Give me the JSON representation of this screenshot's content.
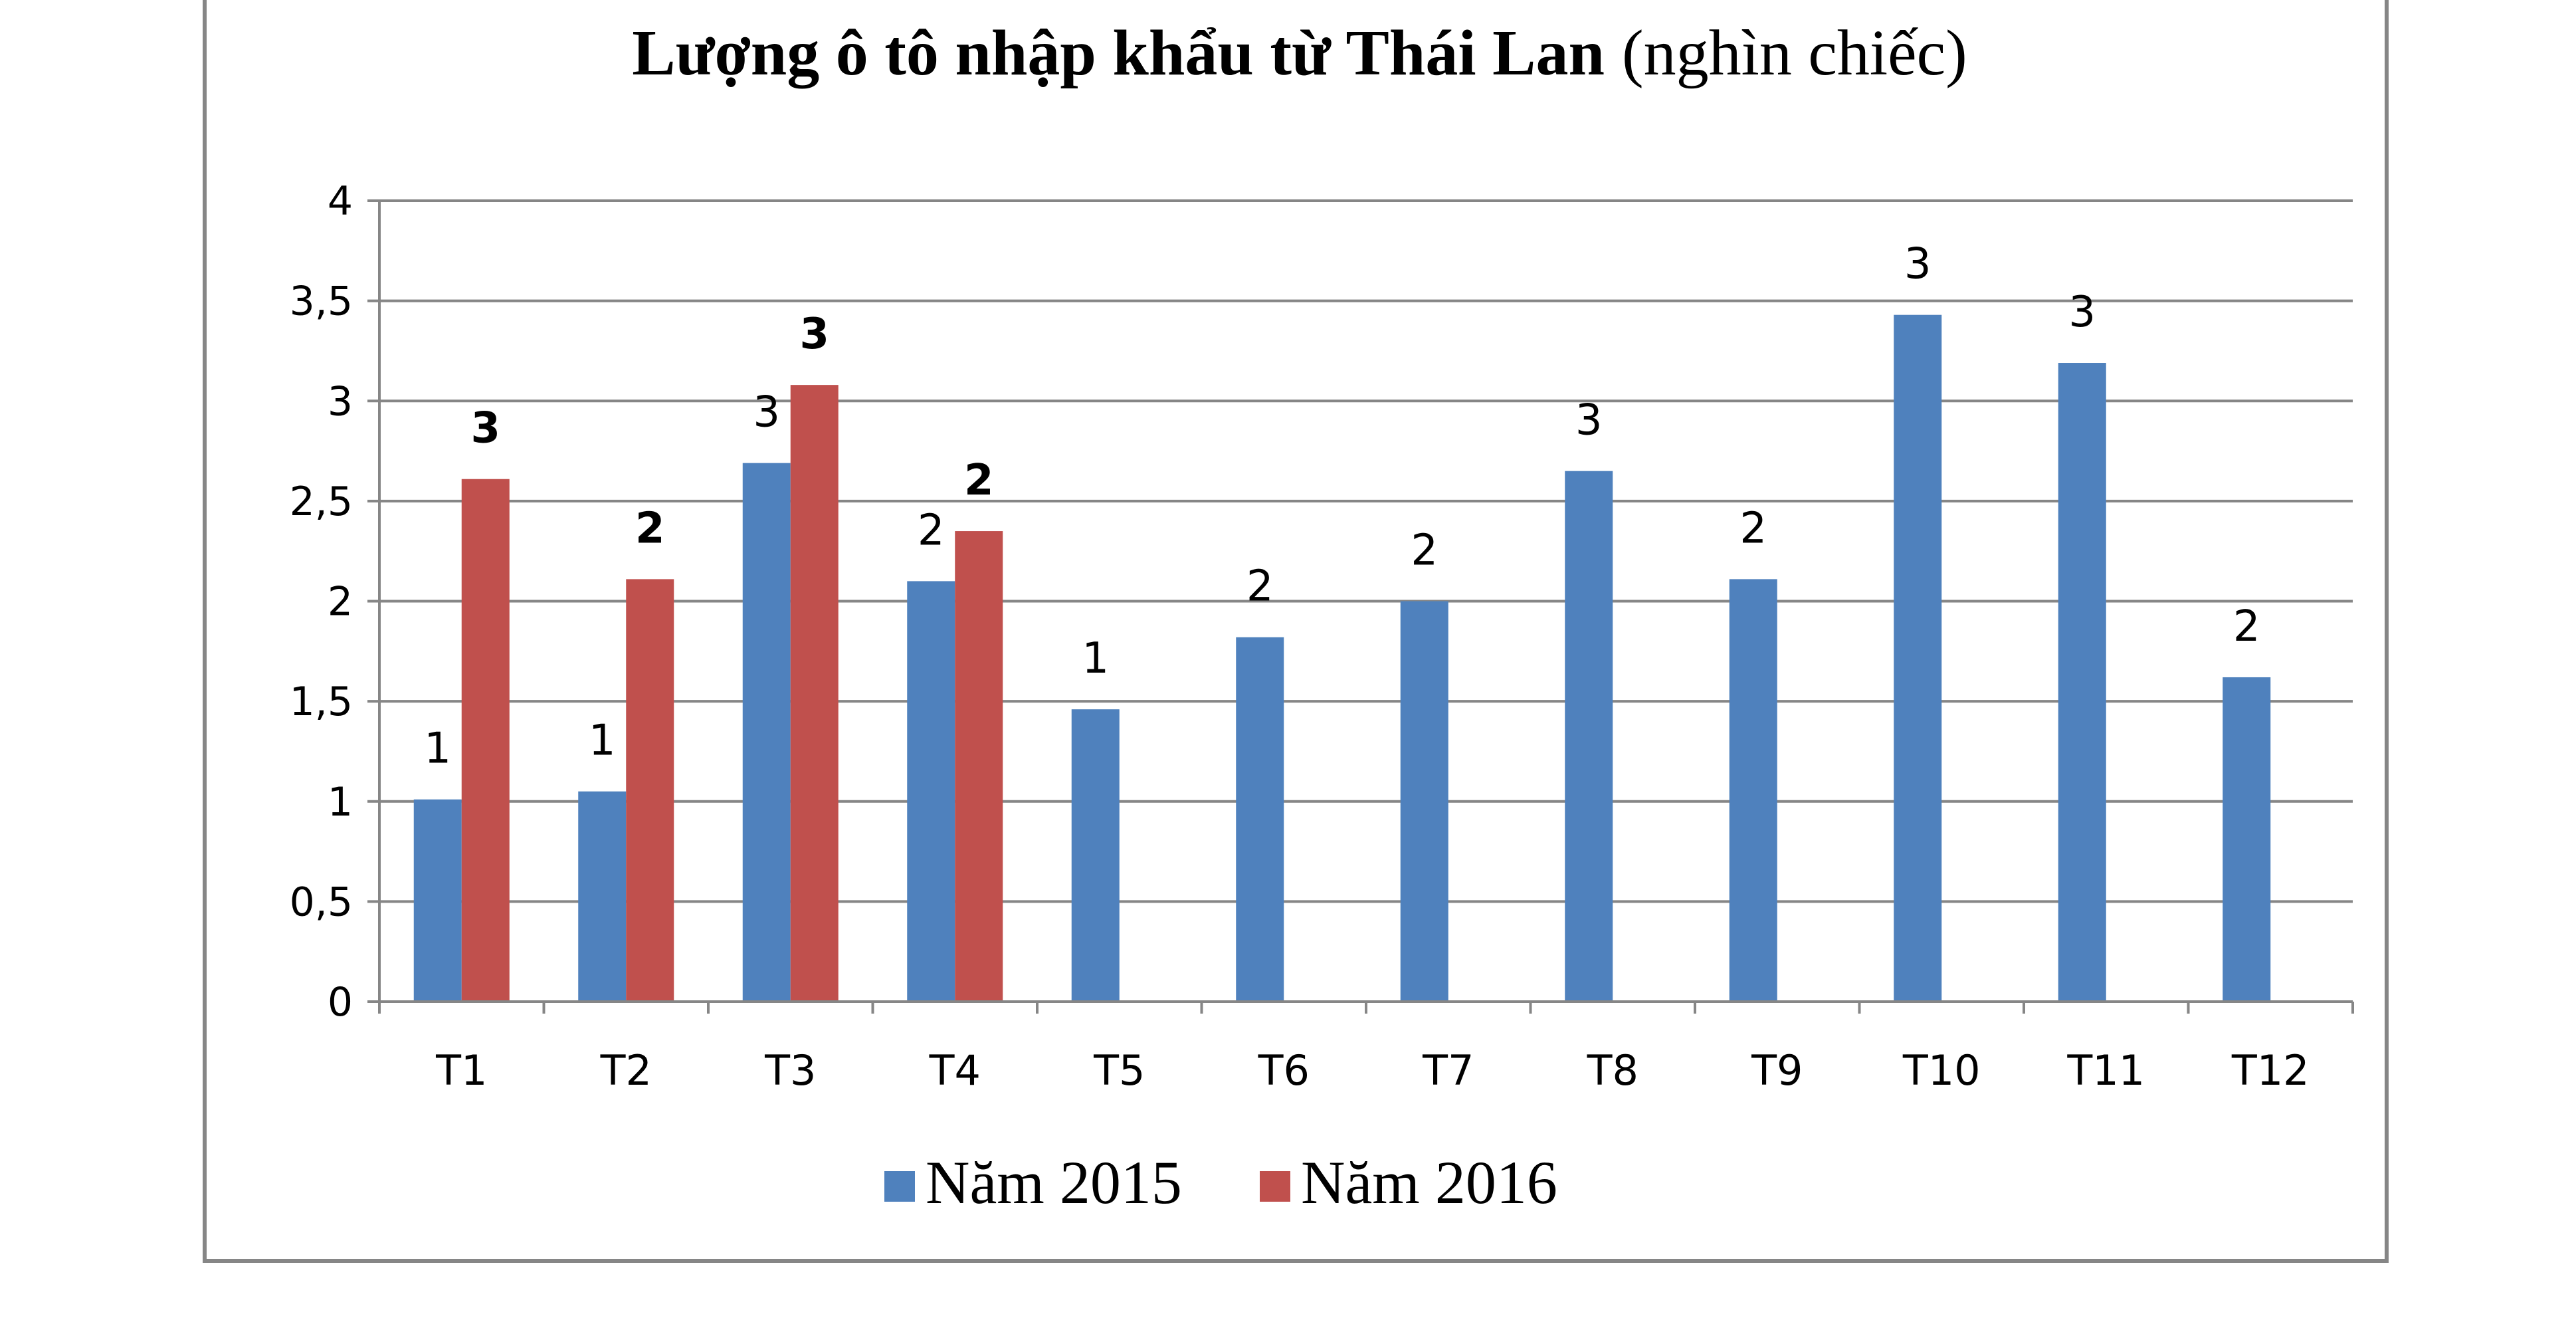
{
  "chart_data": {
    "type": "bar",
    "title_bold": "Lượng ô tô nhập khẩu từ Thái Lan",
    "title_normal": "(nghìn chiếc)",
    "categories": [
      "T1",
      "T2",
      "T3",
      "T4",
      "T5",
      "T6",
      "T7",
      "T8",
      "T9",
      "T10",
      "T11",
      "T12"
    ],
    "series": [
      {
        "name": "Năm 2015",
        "color": "#4F81BD",
        "values": [
          1.01,
          1.05,
          2.69,
          2.1,
          1.46,
          1.82,
          2.0,
          2.65,
          2.11,
          3.43,
          3.19,
          1.62
        ],
        "labels": [
          "1",
          "1",
          "3",
          "2",
          "1",
          "2",
          "2",
          "3",
          "2",
          "3",
          "3",
          "2"
        ],
        "label_bold": false
      },
      {
        "name": "Năm 2016",
        "color": "#C0504D",
        "values": [
          2.61,
          2.11,
          3.08,
          2.35,
          null,
          null,
          null,
          null,
          null,
          null,
          null,
          null
        ],
        "labels": [
          "3",
          "2",
          "3",
          "2"
        ],
        "label_bold": true
      }
    ],
    "yticks": [
      "0",
      "0,5",
      "1",
      "1,5",
      "2",
      "2,5",
      "3",
      "3,5",
      "4"
    ],
    "ylim": [
      0,
      4
    ],
    "grid": true,
    "legend_position": "bottom"
  }
}
